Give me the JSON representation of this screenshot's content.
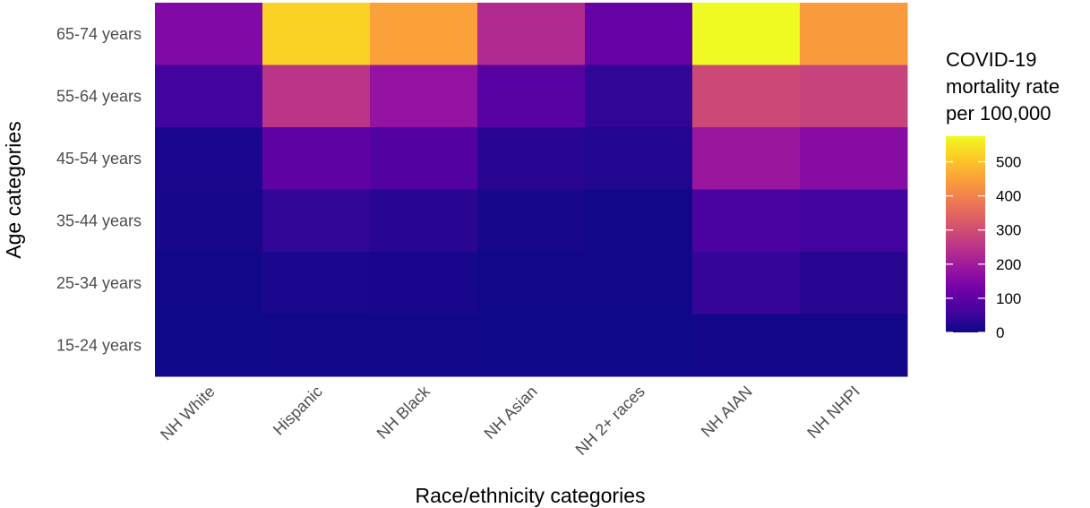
{
  "chart_data": {
    "type": "heatmap",
    "xlabel": "Race/ethnicity categories",
    "ylabel": "Age categories",
    "x_categories": [
      "NH White",
      "Hispanic",
      "NH Black",
      "NH Asian",
      "NH 2+ races",
      "NH AIAN",
      "NH NHPI"
    ],
    "y_categories": [
      "65-74 years",
      "55-64 years",
      "45-54 years",
      "35-44 years",
      "25-34 years",
      "15-24 years"
    ],
    "values": [
      [
        150,
        520,
        450,
        230,
        110,
        575,
        440
      ],
      [
        60,
        250,
        180,
        90,
        40,
        290,
        280
      ],
      [
        15,
        100,
        80,
        30,
        25,
        190,
        160
      ],
      [
        10,
        40,
        30,
        10,
        5,
        70,
        60
      ],
      [
        5,
        15,
        12,
        5,
        5,
        45,
        30
      ],
      [
        2,
        3,
        3,
        2,
        2,
        8,
        6
      ]
    ],
    "color_scale": {
      "name": "plasma",
      "min": 0,
      "max": 575,
      "stops": [
        "#0d0887",
        "#46039f",
        "#7201a8",
        "#9c179e",
        "#bd3786",
        "#d8576b",
        "#ed7953",
        "#fb9f3a",
        "#fdca26",
        "#f0f921"
      ]
    },
    "legend": {
      "title_lines": [
        "COVID-19",
        "mortality rate",
        "per 100,000"
      ],
      "ticks": [
        0,
        100,
        200,
        300,
        400,
        500
      ],
      "placement": "right"
    },
    "grid": false
  }
}
